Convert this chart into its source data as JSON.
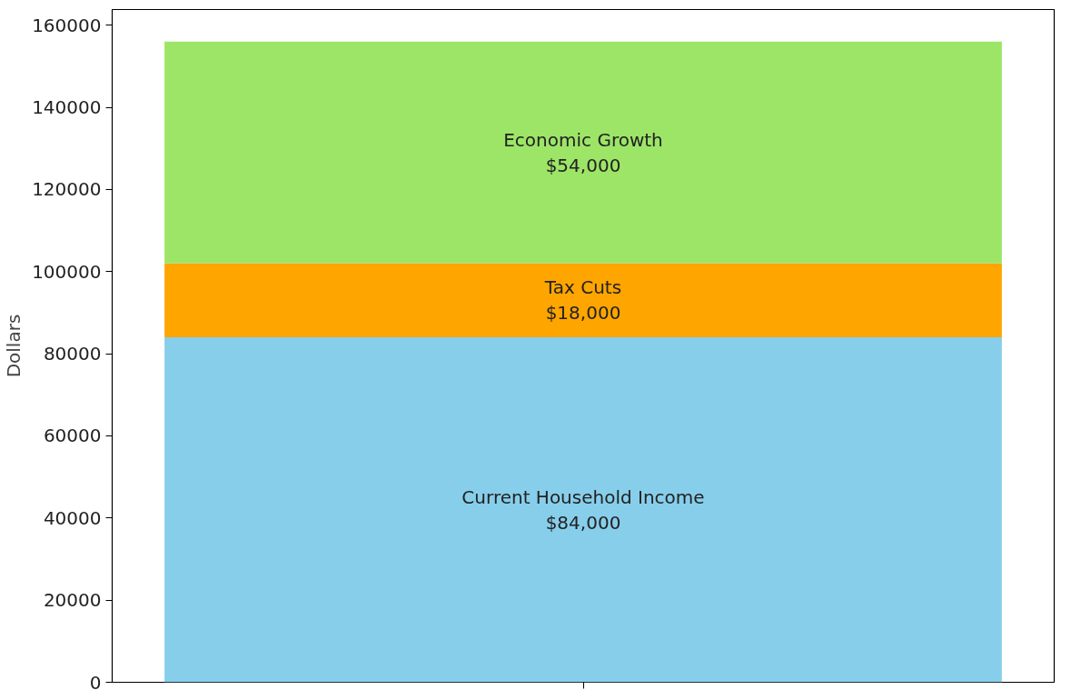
{
  "chart_data": {
    "type": "bar",
    "stacked": true,
    "ylabel": "Dollars",
    "categories": [
      null
    ],
    "series": [
      {
        "name": "Current Household Income",
        "color": "#87ceeb",
        "values": [
          84000
        ],
        "value_labels": [
          "$84,000"
        ]
      },
      {
        "name": "Tax Cuts",
        "color": "#ffa500",
        "values": [
          18000
        ],
        "value_labels": [
          "$18,000"
        ]
      },
      {
        "name": "Economic Growth",
        "color": "#9de567",
        "values": [
          54000
        ],
        "value_labels": [
          "$54,000"
        ]
      }
    ],
    "ylim": [
      0,
      163800
    ],
    "yticks": [
      0,
      20000,
      40000,
      60000,
      80000,
      100000,
      120000,
      140000,
      160000
    ],
    "grid": false
  }
}
